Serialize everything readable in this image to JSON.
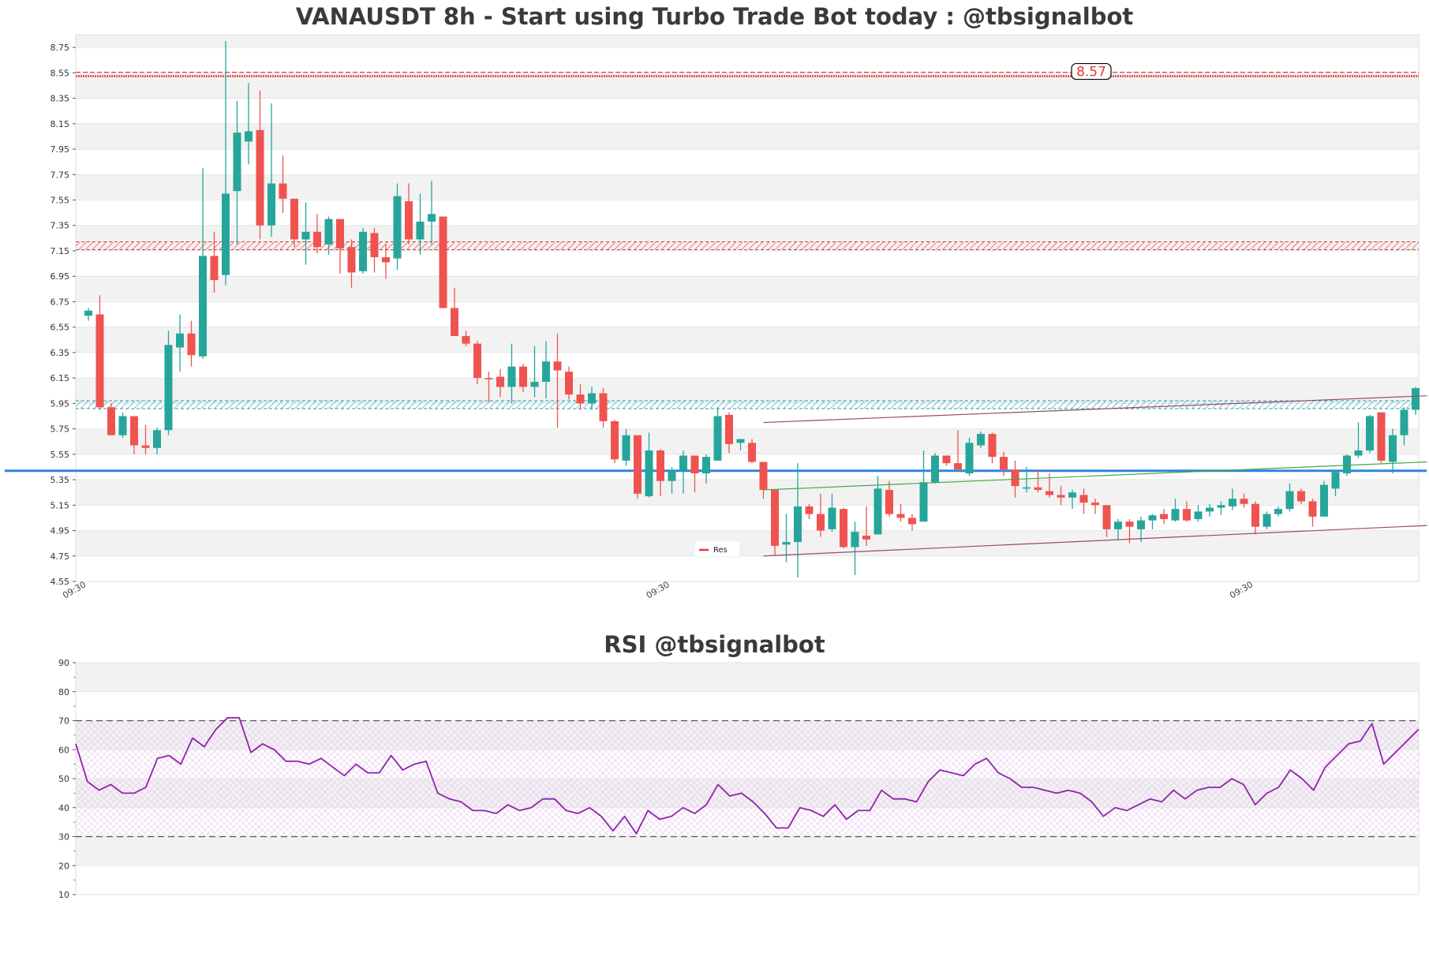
{
  "chart_data": [
    {
      "type": "candlestick",
      "title": "VANAUSDT 8h - Start using Turbo Trade Bot today : @tbsignalbot",
      "ylim": [
        4.55,
        8.85
      ],
      "y_ticks": [
        "8.75",
        "8.55",
        "8.35",
        "8.15",
        "7.95",
        "7.75",
        "7.55",
        "7.35",
        "7.15",
        "6.95",
        "6.75",
        "6.55",
        "6.35",
        "6.15",
        "5.95",
        "5.75",
        "5.55",
        "5.35",
        "5.15",
        "4.95",
        "4.75",
        "4.55"
      ],
      "x_tick_labels": [
        {
          "index": 0,
          "label": "09:30"
        },
        {
          "index": 51,
          "label": "09:30"
        },
        {
          "index": 102,
          "label": "09:30"
        }
      ],
      "ohlc": [
        [
          6.64,
          6.7,
          6.6,
          6.68
        ],
        [
          6.65,
          6.8,
          5.9,
          5.92
        ],
        [
          5.92,
          5.95,
          5.7,
          5.7
        ],
        [
          5.7,
          5.88,
          5.68,
          5.85
        ],
        [
          5.85,
          5.85,
          5.55,
          5.62
        ],
        [
          5.62,
          5.78,
          5.55,
          5.6
        ],
        [
          5.6,
          5.76,
          5.55,
          5.74
        ],
        [
          5.74,
          6.52,
          5.7,
          6.41
        ],
        [
          6.39,
          6.65,
          6.2,
          6.5
        ],
        [
          6.5,
          6.6,
          6.24,
          6.33
        ],
        [
          6.32,
          7.8,
          6.3,
          7.11
        ],
        [
          7.11,
          7.3,
          6.82,
          6.92
        ],
        [
          6.96,
          8.8,
          6.88,
          7.6
        ],
        [
          7.62,
          8.33,
          7.2,
          8.08
        ],
        [
          8.01,
          8.47,
          7.83,
          8.09
        ],
        [
          8.1,
          8.41,
          7.24,
          7.35
        ],
        [
          7.35,
          8.31,
          7.26,
          7.68
        ],
        [
          7.68,
          7.9,
          7.45,
          7.56
        ],
        [
          7.56,
          7.56,
          7.18,
          7.24
        ],
        [
          7.24,
          7.53,
          7.04,
          7.3
        ],
        [
          7.3,
          7.44,
          7.13,
          7.18
        ],
        [
          7.2,
          7.42,
          7.12,
          7.4
        ],
        [
          7.4,
          7.4,
          6.97,
          7.17
        ],
        [
          7.18,
          7.24,
          6.86,
          6.98
        ],
        [
          6.99,
          7.33,
          6.97,
          7.3
        ],
        [
          7.29,
          7.33,
          6.98,
          7.1
        ],
        [
          7.1,
          7.2,
          6.93,
          7.06
        ],
        [
          7.09,
          7.68,
          7.0,
          7.58
        ],
        [
          7.54,
          7.68,
          7.2,
          7.24
        ],
        [
          7.24,
          7.6,
          7.12,
          7.38
        ],
        [
          7.38,
          7.7,
          7.2,
          7.44
        ],
        [
          7.42,
          7.42,
          6.7,
          6.7
        ],
        [
          6.7,
          6.86,
          6.48,
          6.48
        ],
        [
          6.48,
          6.52,
          6.4,
          6.42
        ],
        [
          6.42,
          6.44,
          6.1,
          6.15
        ],
        [
          6.15,
          6.2,
          5.96,
          6.14
        ],
        [
          6.16,
          6.22,
          6.0,
          6.08
        ],
        [
          6.08,
          6.42,
          5.95,
          6.24
        ],
        [
          6.24,
          6.26,
          6.04,
          6.08
        ],
        [
          6.08,
          6.4,
          6.0,
          6.12
        ],
        [
          6.12,
          6.44,
          5.99,
          6.28
        ],
        [
          6.28,
          6.5,
          5.76,
          6.21
        ],
        [
          6.2,
          6.24,
          5.98,
          6.02
        ],
        [
          6.02,
          6.1,
          5.9,
          5.95
        ],
        [
          5.95,
          6.08,
          5.9,
          6.03
        ],
        [
          6.03,
          6.07,
          5.76,
          5.81
        ],
        [
          5.81,
          5.82,
          5.48,
          5.51
        ],
        [
          5.5,
          5.75,
          5.46,
          5.7
        ],
        [
          5.7,
          5.7,
          5.2,
          5.24
        ],
        [
          5.22,
          5.72,
          5.21,
          5.58
        ],
        [
          5.58,
          5.59,
          5.22,
          5.34
        ],
        [
          5.34,
          5.45,
          5.24,
          5.42
        ],
        [
          5.42,
          5.58,
          5.24,
          5.54
        ],
        [
          5.54,
          5.54,
          5.25,
          5.4
        ],
        [
          5.4,
          5.55,
          5.32,
          5.53
        ],
        [
          5.5,
          5.92,
          5.5,
          5.85
        ],
        [
          5.86,
          5.88,
          5.56,
          5.63
        ],
        [
          5.64,
          5.66,
          5.58,
          5.67
        ],
        [
          5.64,
          5.67,
          5.48,
          5.49
        ],
        [
          5.49,
          5.49,
          5.2,
          5.27
        ],
        [
          5.27,
          5.27,
          4.75,
          4.83
        ],
        [
          4.84,
          5.08,
          4.7,
          4.86
        ],
        [
          4.86,
          5.48,
          4.58,
          5.14
        ],
        [
          5.14,
          5.16,
          5.04,
          5.08
        ],
        [
          5.08,
          5.24,
          4.9,
          4.95
        ],
        [
          4.96,
          5.24,
          4.94,
          5.13
        ],
        [
          5.12,
          5.13,
          4.81,
          4.82
        ],
        [
          4.82,
          5.02,
          4.6,
          4.94
        ],
        [
          4.91,
          5.14,
          4.83,
          4.88
        ],
        [
          4.92,
          5.38,
          4.92,
          5.28
        ],
        [
          5.27,
          5.34,
          5.06,
          5.08
        ],
        [
          5.08,
          5.16,
          5.02,
          5.05
        ],
        [
          5.05,
          5.08,
          4.95,
          5.0
        ],
        [
          5.02,
          5.58,
          5.02,
          5.33
        ],
        [
          5.33,
          5.56,
          5.32,
          5.54
        ],
        [
          5.54,
          5.54,
          5.46,
          5.48
        ],
        [
          5.48,
          5.74,
          5.42,
          5.43
        ],
        [
          5.4,
          5.68,
          5.38,
          5.64
        ],
        [
          5.62,
          5.73,
          5.6,
          5.71
        ],
        [
          5.71,
          5.72,
          5.48,
          5.53
        ],
        [
          5.53,
          5.57,
          5.38,
          5.43
        ],
        [
          5.43,
          5.5,
          5.21,
          5.3
        ],
        [
          5.28,
          5.45,
          5.25,
          5.29
        ],
        [
          5.29,
          5.43,
          5.25,
          5.27
        ],
        [
          5.26,
          5.4,
          5.21,
          5.23
        ],
        [
          5.23,
          5.3,
          5.15,
          5.21
        ],
        [
          5.21,
          5.27,
          5.12,
          5.25
        ],
        [
          5.23,
          5.28,
          5.08,
          5.17
        ],
        [
          5.17,
          5.2,
          5.08,
          5.15
        ],
        [
          5.15,
          5.15,
          4.9,
          4.96
        ],
        [
          4.96,
          5.04,
          4.88,
          5.02
        ],
        [
          5.02,
          5.04,
          4.85,
          4.98
        ],
        [
          4.96,
          5.06,
          4.86,
          5.03
        ],
        [
          5.03,
          5.08,
          4.96,
          5.07
        ],
        [
          5.08,
          5.12,
          5.0,
          5.04
        ],
        [
          5.03,
          5.2,
          5.02,
          5.12
        ],
        [
          5.12,
          5.18,
          5.02,
          5.03
        ],
        [
          5.04,
          5.15,
          5.02,
          5.1
        ],
        [
          5.1,
          5.16,
          5.06,
          5.13
        ],
        [
          5.13,
          5.18,
          5.07,
          5.15
        ],
        [
          5.14,
          5.28,
          5.11,
          5.2
        ],
        [
          5.2,
          5.24,
          5.13,
          5.16
        ],
        [
          5.16,
          5.18,
          4.92,
          4.98
        ],
        [
          4.98,
          5.1,
          4.96,
          5.08
        ],
        [
          5.08,
          5.14,
          5.06,
          5.12
        ],
        [
          5.12,
          5.32,
          5.1,
          5.26
        ],
        [
          5.26,
          5.28,
          5.16,
          5.18
        ],
        [
          5.18,
          5.2,
          4.98,
          5.06
        ],
        [
          5.06,
          5.34,
          5.06,
          5.31
        ],
        [
          5.28,
          5.42,
          5.22,
          5.41
        ],
        [
          5.4,
          5.55,
          5.38,
          5.54
        ],
        [
          5.54,
          5.8,
          5.52,
          5.58
        ],
        [
          5.58,
          5.86,
          5.56,
          5.85
        ],
        [
          5.88,
          5.88,
          5.48,
          5.5
        ],
        [
          5.49,
          5.75,
          5.4,
          5.7
        ],
        [
          5.7,
          5.92,
          5.62,
          5.9
        ],
        [
          5.9,
          6.08,
          5.86,
          6.07
        ]
      ],
      "horizontal_levels": [
        {
          "value": 8.53,
          "color": "#e53935",
          "style": "dashed-band",
          "label": "8.57"
        },
        {
          "value": 7.19,
          "color": "#e53935",
          "style": "hatched-band"
        },
        {
          "value": 5.94,
          "color": "#26a0b0",
          "style": "hatched-band"
        },
        {
          "value": 5.42,
          "color": "#2e86de",
          "style": "solid"
        }
      ],
      "trendlines": [
        {
          "color": "#9b4a63",
          "from": [
            59,
            5.8
          ],
          "to": [
            117,
            6.01
          ]
        },
        {
          "color": "#9b4a63",
          "from": [
            59,
            4.75
          ],
          "to": [
            117,
            4.99
          ]
        },
        {
          "color": "#3aaa4a",
          "from": [
            59,
            5.27
          ],
          "to": [
            117,
            5.49
          ]
        }
      ],
      "legend": {
        "label": "Res",
        "color": "#e53935",
        "position": "bottom-center"
      },
      "colors": {
        "up": "#26a69a",
        "down": "#ef5350",
        "band_gray": "#f2f2f2",
        "grid_line": "#e2e2e2"
      }
    },
    {
      "type": "line",
      "title": "RSI @tbsignalbot",
      "ylim": [
        10,
        90
      ],
      "y_ticks": [
        "90",
        "80",
        "70",
        "60",
        "50",
        "40",
        "30",
        "20",
        "10"
      ],
      "thresholds": [
        70,
        30
      ],
      "series": [
        {
          "color": "#8e24aa",
          "values": [
            62,
            49,
            46,
            48,
            45,
            45,
            47,
            57,
            58,
            55,
            64,
            61,
            67,
            71,
            71,
            59,
            62,
            60,
            56,
            56,
            55,
            57,
            54,
            51,
            55,
            52,
            52,
            58,
            53,
            55,
            56,
            45,
            43,
            42,
            39,
            39,
            38,
            41,
            39,
            40,
            43,
            43,
            39,
            38,
            40,
            37,
            32,
            37,
            31,
            39,
            36,
            37,
            40,
            38,
            41,
            48,
            44,
            45,
            42,
            38,
            33,
            33,
            40,
            39,
            37,
            41,
            36,
            39,
            39,
            46,
            43,
            43,
            42,
            49,
            53,
            52,
            51,
            55,
            57,
            52,
            50,
            47,
            47,
            46,
            45,
            46,
            45,
            42,
            37,
            40,
            39,
            41,
            43,
            42,
            46,
            43,
            46,
            47,
            47,
            50,
            48,
            41,
            45,
            47,
            53,
            50,
            46,
            54,
            58,
            62,
            63,
            69,
            55,
            59,
            63,
            67
          ]
        }
      ],
      "colors": {
        "band_gray": "#f2f2f2",
        "hatch": "#e6c8ee",
        "threshold": "#555555"
      }
    }
  ]
}
